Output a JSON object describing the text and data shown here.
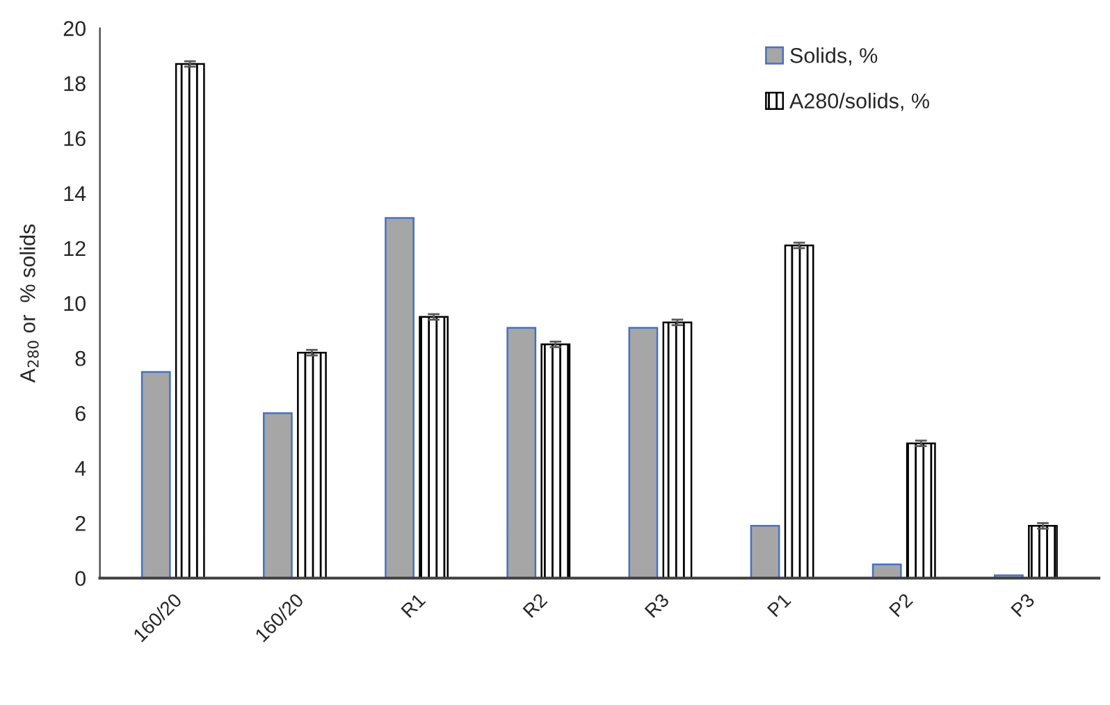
{
  "chart_data": {
    "type": "bar",
    "ylabel": "A$_{280}$ or  % solids",
    "categories": [
      "160/20",
      "160/20",
      "R1",
      "R2",
      "R3",
      "P1",
      "P2",
      "P3"
    ],
    "series": [
      {
        "name": "Solids, %",
        "color": "#a6a6a6",
        "values": [
          7.5,
          6.0,
          13.1,
          9.1,
          9.1,
          1.9,
          0.5,
          0.1
        ]
      },
      {
        "name": "A280/solids, %",
        "color": "#000000",
        "values": [
          18.7,
          8.2,
          9.5,
          8.5,
          9.3,
          12.1,
          4.9,
          1.9
        ],
        "errors": [
          0.1,
          0.1,
          0.1,
          0.1,
          0.1,
          0.1,
          0.1,
          0.1
        ]
      }
    ],
    "ylim": [
      0,
      20
    ],
    "yticks": [
      0,
      2,
      4,
      6,
      8,
      10,
      12,
      14,
      16,
      18,
      20
    ],
    "grid": false,
    "legend": "top right"
  }
}
